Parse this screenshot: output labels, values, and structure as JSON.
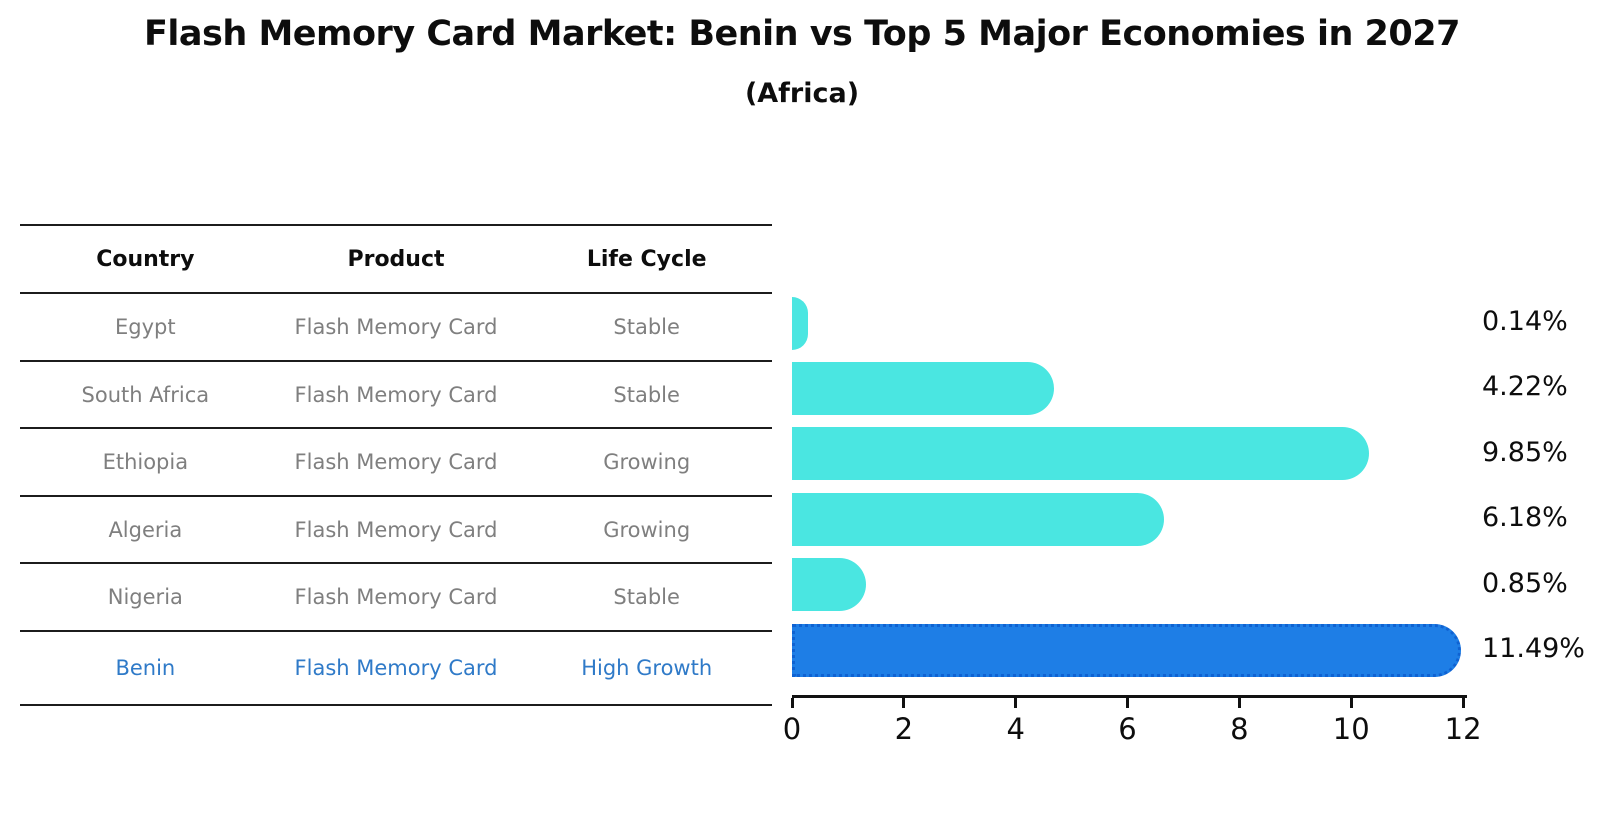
{
  "page": {
    "title": "Flash Memory Card Market: Benin vs Top 5 Major Economies in 2027",
    "subtitle": "(Africa)"
  },
  "table": {
    "headers": [
      "Country",
      "Product",
      "Life Cycle"
    ],
    "rows": [
      {
        "country": "Egypt",
        "product": "Flash Memory Card",
        "life_cycle": "Stable",
        "highlight": false
      },
      {
        "country": "South Africa",
        "product": "Flash Memory Card",
        "life_cycle": "Stable",
        "highlight": false
      },
      {
        "country": "Ethiopia",
        "product": "Flash Memory Card",
        "life_cycle": "Growing",
        "highlight": false
      },
      {
        "country": "Algeria",
        "product": "Flash Memory Card",
        "life_cycle": "Growing",
        "highlight": false
      },
      {
        "country": "Nigeria",
        "product": "Flash Memory Card",
        "life_cycle": "Stable",
        "highlight": false
      },
      {
        "country": "Benin",
        "product": "Flash Memory Card",
        "life_cycle": "High Growth",
        "highlight": true
      }
    ]
  },
  "chart_data": {
    "type": "bar",
    "orientation": "horizontal",
    "title": "Flash Memory Card Market: Benin vs Top 5 Major Economies in 2027 (Africa)",
    "categories": [
      "Egypt",
      "South Africa",
      "Ethiopia",
      "Algeria",
      "Nigeria",
      "Benin"
    ],
    "values": [
      0.14,
      4.22,
      9.85,
      6.18,
      0.85,
      11.49
    ],
    "value_labels": [
      "0.14%",
      "4.22%",
      "9.85%",
      "6.18%",
      "0.85%",
      "11.49%"
    ],
    "highlight_index": 5,
    "xlim": [
      0,
      12.07
    ],
    "xticks": [
      0,
      2,
      4,
      6,
      8,
      10,
      12
    ],
    "grid": false,
    "legend": false,
    "bar_color": "#4ae6e1",
    "highlight_bar_color": "#1e7ee6",
    "highlight_edge_color": "#0f62d2",
    "label_color": "#0d0d0d",
    "muted_text_color": "#7f7f7f",
    "highlight_text_color": "#2f7ac8"
  }
}
